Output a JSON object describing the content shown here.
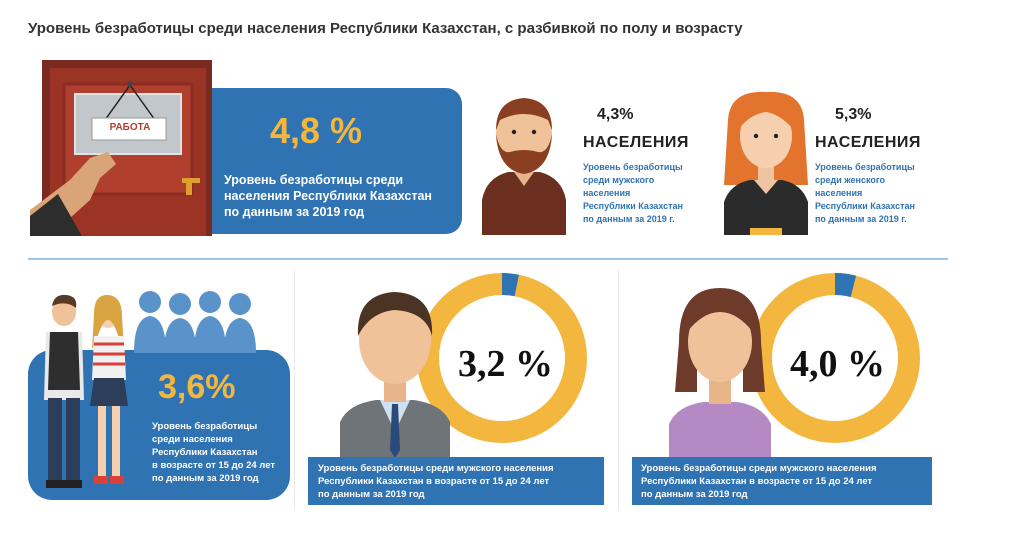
{
  "title": "Уровень безработицы среди населения Республики Казахстан, с разбивкой по полу и возрасту",
  "door_sign": "РАБОТА",
  "overall": {
    "value": "4,8 %",
    "text_lines": [
      "Уровень безработицы среди",
      "населения Республики Казахстан",
      "по данным за 2019 год"
    ]
  },
  "male": {
    "value": "4,3%",
    "label": "НАСЕЛЕНИЯ",
    "text_lines": [
      "Уровень безработицы",
      "среди мужского",
      "населения",
      "Республики Казахстан",
      "по данным за   2019 г."
    ]
  },
  "female": {
    "value": "5,3%",
    "label": "НАСЕЛЕНИЯ",
    "text_lines": [
      "Уровень безработицы",
      "среди женского",
      "населения",
      "Республики Казахстан",
      "по данным за  2019 г."
    ]
  },
  "youth": {
    "value": "3,6%",
    "text_lines": [
      "Уровень безработицы",
      "среди населения",
      "Республики Казахстан",
      "в возрасте от 15 до 24 лет",
      "по данным за 2019 год"
    ]
  },
  "youth_male": {
    "value": "3,2 %",
    "fraction": 0.032,
    "text_lines": [
      "Уровень безработицы среди мужского населения",
      "Республики Казахстан в возрасте от 15 до 24 лет",
      "по данным за 2019 год"
    ]
  },
  "youth_female": {
    "value": "4,0 %",
    "fraction": 0.04,
    "text_lines": [
      "Уровень безработицы среди мужского населения",
      "Республики Казахстан в возрасте от 15 до 24 лет",
      "по данным за  2019 год"
    ]
  },
  "colors": {
    "blue": "#2f73b3",
    "gold": "#f3b73f",
    "ring_accent": "#2f73b3"
  }
}
